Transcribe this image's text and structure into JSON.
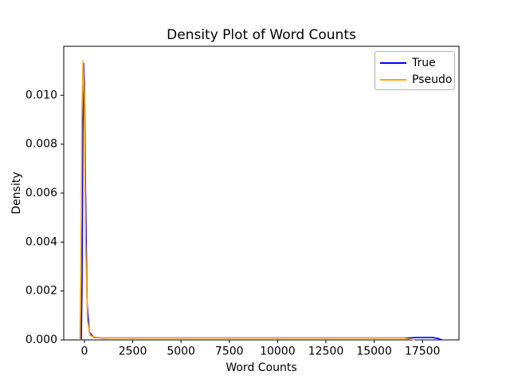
{
  "figure": {
    "background": "#ffffff"
  },
  "chart_data": {
    "type": "line",
    "title": "Density Plot of Word Counts",
    "xlabel": "Word Counts",
    "ylabel": "Density",
    "xlim": [
      -1070,
      19390
    ],
    "ylim": [
      0,
      0.012
    ],
    "x_ticks": [
      0,
      2500,
      5000,
      7500,
      10000,
      12500,
      15000,
      17500
    ],
    "x_tick_labels": [
      "0",
      "2500",
      "5000",
      "7500",
      "10000",
      "12500",
      "15000",
      "17500"
    ],
    "y_ticks": [
      0.0,
      0.002,
      0.004,
      0.006,
      0.008,
      0.01
    ],
    "y_tick_labels": [
      "0.000",
      "0.002",
      "0.004",
      "0.006",
      "0.008",
      "0.010"
    ],
    "grid": false,
    "legend": {
      "position": "upper right"
    },
    "axis_color": "#000000",
    "series": [
      {
        "name": "True",
        "color": "#0000ff",
        "x": [
          -160,
          -120,
          -80,
          -40,
          0,
          60,
          140,
          260,
          500,
          1000,
          2500,
          5000,
          10000,
          15000,
          16800,
          17200,
          17600,
          18000,
          18300,
          18500
        ],
        "y": [
          0.0,
          0.0025,
          0.0085,
          0.0113,
          0.0105,
          0.006,
          0.0015,
          0.0003,
          0.0001,
          8e-05,
          8e-05,
          8e-05,
          8e-05,
          8e-05,
          8e-05,
          0.0001,
          0.0001,
          0.0001,
          6e-05,
          0.0
        ]
      },
      {
        "name": "Pseudo",
        "color": "#ffa500",
        "x": [
          -230,
          -180,
          -130,
          -70,
          -10,
          60,
          160,
          300,
          600,
          1200,
          2500,
          5000,
          10000,
          15000,
          16500,
          17100
        ],
        "y": [
          0.0,
          0.003,
          0.009,
          0.0114,
          0.01,
          0.004,
          0.0008,
          0.00018,
          0.0001,
          8e-05,
          8e-05,
          8e-05,
          8e-05,
          8e-05,
          8e-05,
          0.0
        ]
      }
    ]
  }
}
